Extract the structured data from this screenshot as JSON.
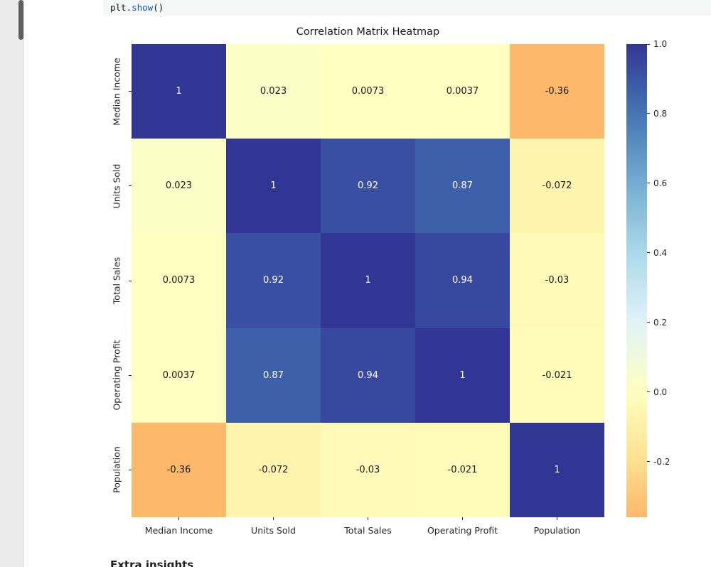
{
  "code_cell": {
    "tokens": [
      {
        "text": "plt.",
        "type": "plain"
      },
      {
        "text": "show",
        "type": "function"
      },
      {
        "text": "()",
        "type": "plain"
      }
    ]
  },
  "bottom_section": {
    "partial_heading": "Extra insights"
  },
  "chart_data": {
    "type": "heatmap",
    "title": "Correlation Matrix Heatmap",
    "categories": [
      "Median Income",
      "Units Sold",
      "Total Sales",
      "Operating Profit",
      "Population"
    ],
    "matrix": [
      [
        1,
        0.023,
        0.0073,
        0.0037,
        -0.36
      ],
      [
        0.023,
        1,
        0.92,
        0.87,
        -0.072
      ],
      [
        0.0073,
        0.92,
        1,
        0.94,
        -0.03
      ],
      [
        0.0037,
        0.87,
        0.94,
        1,
        -0.021
      ],
      [
        -0.36,
        -0.072,
        -0.03,
        -0.021,
        1
      ]
    ],
    "cell_labels": [
      [
        "1",
        "0.023",
        "0.0073",
        "0.0037",
        "-0.36"
      ],
      [
        "0.023",
        "1",
        "0.92",
        "0.87",
        "-0.072"
      ],
      [
        "0.0073",
        "0.92",
        "1",
        "0.94",
        "-0.03"
      ],
      [
        "0.0037",
        "0.87",
        "0.94",
        "1",
        "-0.021"
      ],
      [
        "-0.36",
        "-0.072",
        "-0.03",
        "-0.021",
        "1"
      ]
    ],
    "colormap": {
      "name": "RdYlBu",
      "anchors": [
        "#a50026",
        "#d73027",
        "#f46d43",
        "#fdae61",
        "#fee090",
        "#ffffbf",
        "#e0f3f8",
        "#abd9e9",
        "#74add1",
        "#4575b4",
        "#313695"
      ]
    },
    "norm": {
      "vmin": -1,
      "vmax": 1,
      "center": 0
    },
    "colorbar": {
      "range": [
        -0.36,
        1.0
      ],
      "legend_position": "right",
      "ticks": [
        {
          "value": 1.0,
          "label": "1.0"
        },
        {
          "value": 0.8,
          "label": "0.8"
        },
        {
          "value": 0.6,
          "label": "0.6"
        },
        {
          "value": 0.4,
          "label": "0.4"
        },
        {
          "value": 0.2,
          "label": "0.2"
        },
        {
          "value": 0.0,
          "label": "0.0"
        },
        {
          "value": -0.2,
          "label": "-0.2"
        }
      ]
    },
    "grid": false
  }
}
